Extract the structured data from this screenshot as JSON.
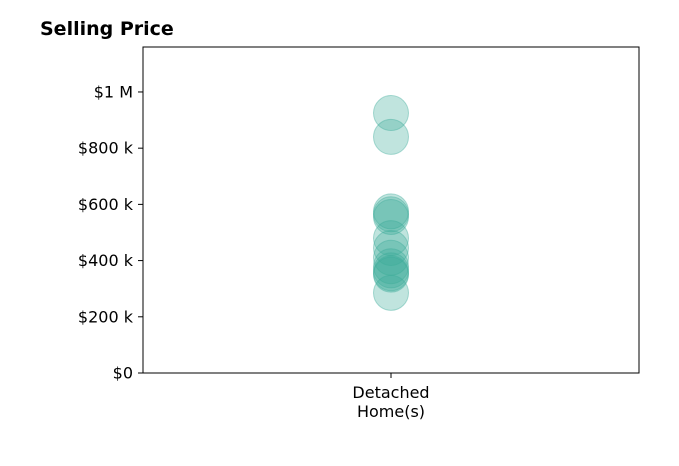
{
  "chart_data": {
    "type": "scatter",
    "title": "Selling Price",
    "xlabel": "",
    "ylabel": "",
    "categories": [
      "Detached\nHome(s)"
    ],
    "yticks": [
      {
        "value": 0,
        "label": "$0"
      },
      {
        "value": 200000,
        "label": "$200 k"
      },
      {
        "value": 400000,
        "label": "$400 k"
      },
      {
        "value": 600000,
        "label": "$600 k"
      },
      {
        "value": 800000,
        "label": "$800 k"
      },
      {
        "value": 1000000,
        "label": "$1 M"
      }
    ],
    "ylim": [
      0,
      1160000
    ],
    "grid": false,
    "marker_color": "#3aaa99",
    "marker_opacity": 0.32,
    "series": [
      {
        "category": "Detached\nHome(s)",
        "values": [
          925000,
          840000,
          575000,
          565000,
          555000,
          480000,
          445000,
          410000,
          380000,
          365000,
          355000,
          350000,
          285000
        ]
      }
    ]
  }
}
